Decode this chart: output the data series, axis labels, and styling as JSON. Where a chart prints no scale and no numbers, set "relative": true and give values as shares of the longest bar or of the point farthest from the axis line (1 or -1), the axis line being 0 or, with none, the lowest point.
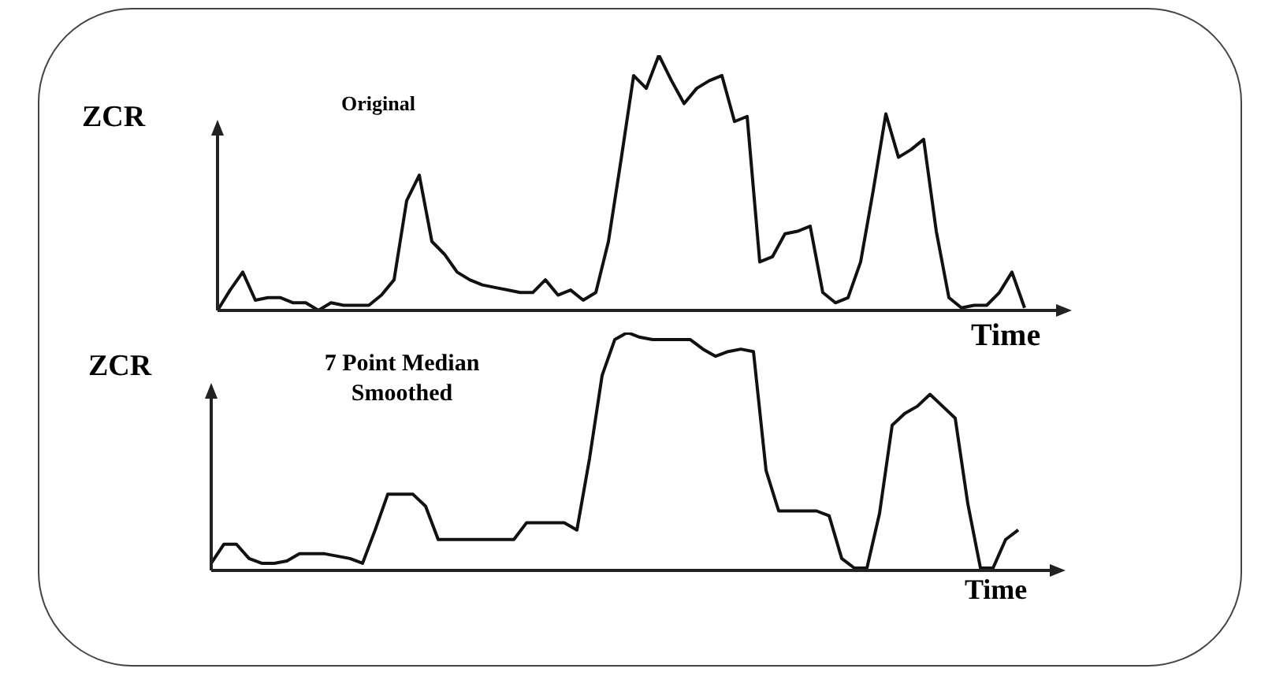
{
  "chart_data": [
    {
      "type": "line",
      "title": "Original",
      "xlabel": "Time",
      "ylabel": "ZCR",
      "relative": true,
      "color": "#111111",
      "categories": [
        null,
        null,
        null,
        null,
        null,
        null,
        null,
        null,
        null,
        null,
        null,
        null,
        null,
        null,
        null,
        null,
        null,
        null,
        null,
        null,
        null,
        null,
        null,
        null,
        null,
        null,
        null,
        null,
        null,
        null,
        null,
        null,
        null,
        null,
        null,
        null,
        null,
        null,
        null,
        null,
        null,
        null,
        null,
        null,
        null,
        null,
        null,
        null,
        null,
        null,
        null,
        null,
        null,
        null,
        null,
        null,
        null,
        null,
        null,
        null,
        null,
        null,
        null,
        null,
        null
      ],
      "values": [
        0,
        0.08,
        0.15,
        0.04,
        0.05,
        0.05,
        0.03,
        0.03,
        0,
        0.03,
        0.02,
        0.02,
        0.02,
        0.06,
        0.12,
        0.43,
        0.53,
        0.27,
        0.22,
        0.15,
        0.12,
        0.1,
        0.09,
        0.08,
        0.07,
        0.07,
        0.12,
        0.06,
        0.08,
        0.04,
        0.07,
        0.27,
        0.59,
        0.92,
        0.87,
        1,
        0.9,
        0.81,
        0.87,
        0.9,
        0.92,
        0.74,
        0.76,
        0.19,
        0.21,
        0.3,
        0.31,
        0.33,
        0.07,
        0.03,
        0.05,
        0.19,
        0.47,
        0.77,
        0.6,
        0.63,
        0.67,
        0.31,
        0.05,
        0.01,
        0.02,
        0.02,
        0.07,
        0.15,
        0.01
      ]
    },
    {
      "type": "line",
      "title": "7 Point Median Smoothed",
      "xlabel": "Time",
      "ylabel": "ZCR",
      "relative": true,
      "color": "#111111",
      "categories": [
        null,
        null,
        null,
        null,
        null,
        null,
        null,
        null,
        null,
        null,
        null,
        null,
        null,
        null,
        null,
        null,
        null,
        null,
        null,
        null,
        null,
        null,
        null,
        null,
        null,
        null,
        null,
        null,
        null,
        null,
        null,
        null,
        null,
        null,
        null,
        null,
        null,
        null,
        null,
        null,
        null,
        null,
        null,
        null,
        null,
        null,
        null,
        null,
        null,
        null,
        null,
        null,
        null,
        null,
        null,
        null,
        null,
        null,
        null,
        null,
        null,
        null,
        null,
        null,
        null
      ],
      "values": [
        0.03,
        0.11,
        0.11,
        0.05,
        0.03,
        0.03,
        0.04,
        0.07,
        0.07,
        0.07,
        0.06,
        0.05,
        0.03,
        0.17,
        0.32,
        0.32,
        0.32,
        0.27,
        0.13,
        0.13,
        0.13,
        0.13,
        0.13,
        0.13,
        0.13,
        0.2,
        0.2,
        0.2,
        0.2,
        0.17,
        0.47,
        0.82,
        0.97,
        1,
        0.98,
        0.97,
        0.97,
        0.97,
        0.97,
        0.93,
        0.9,
        0.92,
        0.93,
        0.92,
        0.42,
        0.25,
        0.25,
        0.25,
        0.25,
        0.23,
        0.05,
        0.01,
        0.01,
        0.24,
        0.61,
        0.66,
        0.69,
        0.74,
        0.69,
        0.64,
        0.28,
        0.01,
        0.01,
        0.13,
        0.17
      ]
    }
  ]
}
